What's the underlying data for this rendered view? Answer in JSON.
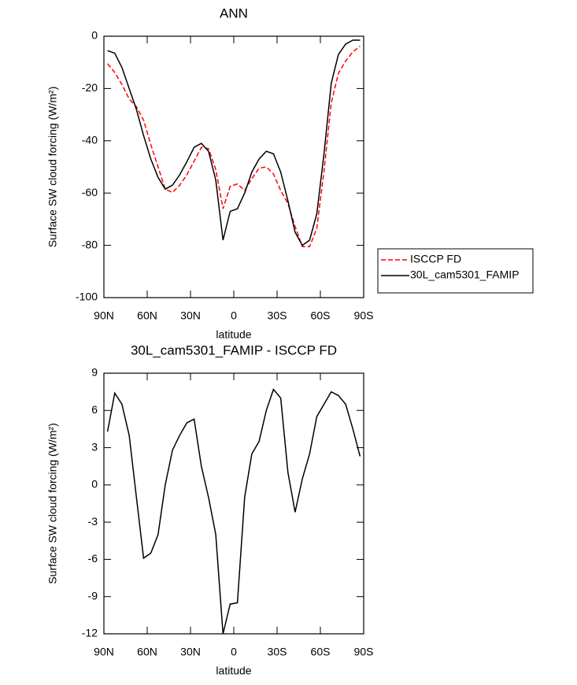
{
  "chart_data": [
    {
      "type": "line",
      "title": "ANN",
      "xlabel": "latitude",
      "ylabel": "Surface SW cloud forcing (W/m²)",
      "x": [
        87.5,
        82.5,
        77.5,
        72.5,
        67.5,
        62.5,
        57.5,
        52.5,
        47.5,
        42.5,
        37.5,
        32.5,
        27.5,
        22.5,
        17.5,
        12.5,
        7.5,
        2.5,
        -2.5,
        -7.5,
        -12.5,
        -17.5,
        -22.5,
        -27.5,
        -32.5,
        -37.5,
        -42.5,
        -47.5,
        -52.5,
        -57.5,
        -62.5,
        -67.5,
        -72.5,
        -77.5,
        -82.5,
        -87.5
      ],
      "xlim": [
        90,
        -90
      ],
      "xticks": [
        {
          "value": 90,
          "label": "90N"
        },
        {
          "value": 60,
          "label": "60N"
        },
        {
          "value": 30,
          "label": "30N"
        },
        0,
        {
          "value": -30,
          "label": "30S"
        },
        {
          "value": -60,
          "label": "60S"
        },
        {
          "value": -90,
          "label": "90S"
        }
      ],
      "ylim": [
        -100,
        0
      ],
      "yticks": [
        0,
        -20,
        -40,
        -60,
        -80,
        -100
      ],
      "legend": "right",
      "series": [
        {
          "name": "ISCCP FD",
          "color": "#ff0000",
          "dash": true,
          "values": [
            -10.5,
            -13.9,
            -18.5,
            -24,
            -27,
            -32.1,
            -41.5,
            -50,
            -58.5,
            -59.8,
            -57,
            -53,
            -47.8,
            -42.5,
            -43,
            -51,
            -66,
            -57.4,
            -56.5,
            -59,
            -54.5,
            -50.5,
            -50,
            -52.7,
            -59,
            -64,
            -72.8,
            -80.5,
            -80.5,
            -73.5,
            -51.5,
            -25.5,
            -14.2,
            -9.5,
            -6,
            -3.8
          ]
        },
        {
          "name": "30L_cam5301_FAMIP",
          "color": "#000000",
          "dash": false,
          "values": [
            -5.5,
            -6.5,
            -12,
            -20,
            -28,
            -38,
            -47,
            -54,
            -58.5,
            -57,
            -53,
            -48,
            -42.5,
            -41,
            -44,
            -55,
            -78,
            -67,
            -66,
            -60,
            -52,
            -47,
            -44,
            -45,
            -52,
            -63,
            -75,
            -80,
            -78,
            -68,
            -45,
            -18,
            -7,
            -3,
            -1.5,
            -1.5
          ]
        }
      ]
    },
    {
      "type": "line",
      "title": "30L_cam5301_FAMIP - ISCCP FD",
      "xlabel": "latitude",
      "ylabel": "Surface SW cloud forcing (W/m²)",
      "x": [
        87.5,
        82.5,
        77.5,
        72.5,
        67.5,
        62.5,
        57.5,
        52.5,
        47.5,
        42.5,
        37.5,
        32.5,
        27.5,
        22.5,
        17.5,
        12.5,
        7.5,
        2.5,
        -2.5,
        -7.5,
        -12.5,
        -17.5,
        -22.5,
        -27.5,
        -32.5,
        -37.5,
        -42.5,
        -47.5,
        -52.5,
        -57.5,
        -62.5,
        -67.5,
        -72.5,
        -77.5,
        -82.5,
        -87.5
      ],
      "xlim": [
        90,
        -90
      ],
      "xticks": [
        {
          "value": 90,
          "label": "90N"
        },
        {
          "value": 60,
          "label": "60N"
        },
        {
          "value": 30,
          "label": "30N"
        },
        0,
        {
          "value": -30,
          "label": "30S"
        },
        {
          "value": -60,
          "label": "60S"
        },
        {
          "value": -90,
          "label": "90S"
        }
      ],
      "ylim": [
        -12,
        9
      ],
      "yticks": [
        9,
        6,
        3,
        0,
        -3,
        -6,
        -9,
        -12
      ],
      "series": [
        {
          "color": "#000000",
          "dash": false,
          "values": [
            4.3,
            7.4,
            6.5,
            4,
            -1,
            -5.9,
            -5.5,
            -4,
            0,
            2.8,
            4,
            5,
            5.3,
            1.5,
            -1,
            -4,
            -12,
            -9.6,
            -9.5,
            -1,
            2.5,
            3.5,
            6,
            7.7,
            7,
            1,
            -2.2,
            0.5,
            2.5,
            5.5,
            6.5,
            7.5,
            7.2,
            6.5,
            4.5,
            2.3
          ]
        }
      ]
    }
  ]
}
